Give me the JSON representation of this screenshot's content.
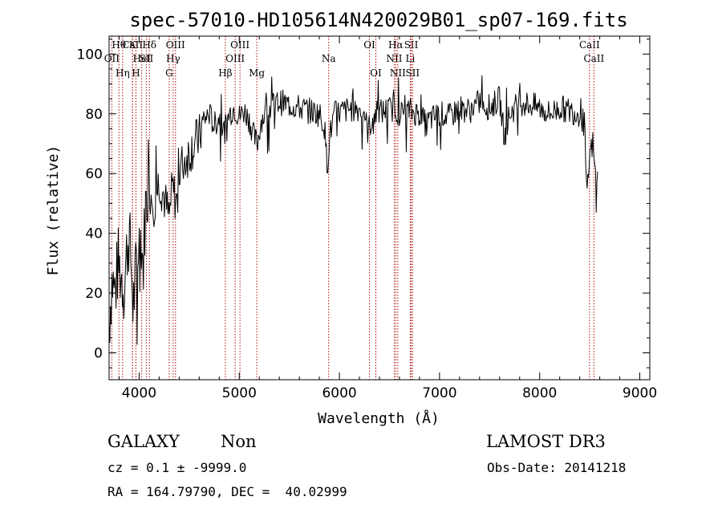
{
  "chart_data": {
    "type": "line",
    "title": "spec-57010-HD105614N420029B01_sp07-169.fits",
    "xlabel": "Wavelength (Å)",
    "ylabel": "Flux (relative)",
    "xlim": [
      3700,
      9100
    ],
    "ylim": [
      -9,
      106
    ],
    "xticks": [
      4000,
      5000,
      6000,
      7000,
      8000,
      9000
    ],
    "yticks": [
      0,
      20,
      40,
      60,
      80,
      100
    ],
    "grid": false,
    "spectral_lines": [
      {
        "name": "OII",
        "wavelength": 3727,
        "row": 2
      },
      {
        "name": "Hθ",
        "wavelength": 3798,
        "row": 1
      },
      {
        "name": "Hη",
        "wavelength": 3835,
        "row": 3
      },
      {
        "name": "CaII",
        "wavelength": 3934,
        "row": 1
      },
      {
        "name": "K",
        "wavelength": 3934,
        "row": 1
      },
      {
        "name": "H",
        "wavelength": 3968,
        "row": 3
      },
      {
        "name": "HeI",
        "wavelength": 4026,
        "row": 2
      },
      {
        "name": "Hδ",
        "wavelength": 4102,
        "row": 1
      },
      {
        "name": "SII",
        "wavelength": 4072,
        "row": 2
      },
      {
        "name": "G",
        "wavelength": 4300,
        "row": 3
      },
      {
        "name": "Hγ",
        "wavelength": 4340,
        "row": 2
      },
      {
        "name": "OIII",
        "wavelength": 4363,
        "row": 1
      },
      {
        "name": "Hβ",
        "wavelength": 4861,
        "row": 3
      },
      {
        "name": "OIII",
        "wavelength": 4959,
        "row": 2
      },
      {
        "name": "OIII",
        "wavelength": 5007,
        "row": 1
      },
      {
        "name": "Mg",
        "wavelength": 5175,
        "row": 3
      },
      {
        "name": "Na",
        "wavelength": 5893,
        "row": 2
      },
      {
        "name": "OI",
        "wavelength": 6300,
        "row": 1
      },
      {
        "name": "OI",
        "wavelength": 6364,
        "row": 3
      },
      {
        "name": "NII",
        "wavelength": 6548,
        "row": 2
      },
      {
        "name": "Hα",
        "wavelength": 6563,
        "row": 1
      },
      {
        "name": "NII",
        "wavelength": 6583,
        "row": 3
      },
      {
        "name": "SII",
        "wavelength": 6717,
        "row": 1
      },
      {
        "name": "Li",
        "wavelength": 6708,
        "row": 2
      },
      {
        "name": "SII",
        "wavelength": 6731,
        "row": 3
      },
      {
        "name": "CaII",
        "wavelength": 8498,
        "row": 1
      },
      {
        "name": "CaII",
        "wavelength": 8542,
        "row": 2
      }
    ],
    "series": [
      {
        "name": "flux",
        "anchors": [
          [
            3700,
            10
          ],
          [
            3730,
            25
          ],
          [
            3760,
            20
          ],
          [
            3790,
            30
          ],
          [
            3820,
            26
          ],
          [
            3850,
            22
          ],
          [
            3880,
            35
          ],
          [
            3900,
            40
          ],
          [
            3920,
            30
          ],
          [
            3940,
            15
          ],
          [
            3960,
            24
          ],
          [
            3990,
            33
          ],
          [
            4020,
            40
          ],
          [
            4040,
            28
          ],
          [
            4060,
            48
          ],
          [
            4100,
            55
          ],
          [
            4150,
            50
          ],
          [
            4200,
            58
          ],
          [
            4250,
            52
          ],
          [
            4300,
            45
          ],
          [
            4330,
            55
          ],
          [
            4380,
            50
          ],
          [
            4420,
            62
          ],
          [
            4480,
            66
          ],
          [
            4550,
            70
          ],
          [
            4600,
            72
          ],
          [
            4650,
            78
          ],
          [
            4700,
            80
          ],
          [
            4750,
            76
          ],
          [
            4800,
            79
          ],
          [
            4850,
            74
          ],
          [
            4900,
            80
          ],
          [
            4950,
            82
          ],
          [
            5000,
            79
          ],
          [
            5050,
            81
          ],
          [
            5100,
            78
          ],
          [
            5150,
            72
          ],
          [
            5180,
            70
          ],
          [
            5220,
            78
          ],
          [
            5300,
            82
          ],
          [
            5400,
            84
          ],
          [
            5500,
            83
          ],
          [
            5600,
            82
          ],
          [
            5700,
            81
          ],
          [
            5800,
            80
          ],
          [
            5850,
            76
          ],
          [
            5880,
            62
          ],
          [
            5900,
            72
          ],
          [
            5950,
            80
          ],
          [
            6050,
            81
          ],
          [
            6150,
            82
          ],
          [
            6250,
            81
          ],
          [
            6280,
            74
          ],
          [
            6350,
            80
          ],
          [
            6450,
            81
          ],
          [
            6550,
            82
          ],
          [
            6600,
            80
          ],
          [
            6700,
            81
          ],
          [
            6800,
            80
          ],
          [
            6870,
            76
          ],
          [
            6900,
            78
          ],
          [
            7000,
            80
          ],
          [
            7100,
            79
          ],
          [
            7200,
            82
          ],
          [
            7300,
            81
          ],
          [
            7400,
            84
          ],
          [
            7500,
            82
          ],
          [
            7600,
            85
          ],
          [
            7650,
            72
          ],
          [
            7700,
            80
          ],
          [
            7800,
            84
          ],
          [
            7900,
            83
          ],
          [
            8000,
            82
          ],
          [
            8100,
            80
          ],
          [
            8200,
            82
          ],
          [
            8300,
            81
          ],
          [
            8400,
            80
          ],
          [
            8450,
            76
          ],
          [
            8470,
            50
          ],
          [
            8500,
            66
          ],
          [
            8530,
            70
          ],
          [
            8560,
            58
          ],
          [
            8580,
            62
          ]
        ]
      }
    ]
  },
  "info": {
    "object_class": "GALAXY",
    "subclass": "Non",
    "survey": "LAMOST DR3",
    "cz": "cz = 0.1 ± -9999.0",
    "obs_date": "Obs-Date: 20141218",
    "coords": "RA = 164.79790, DEC =  40.02999"
  }
}
